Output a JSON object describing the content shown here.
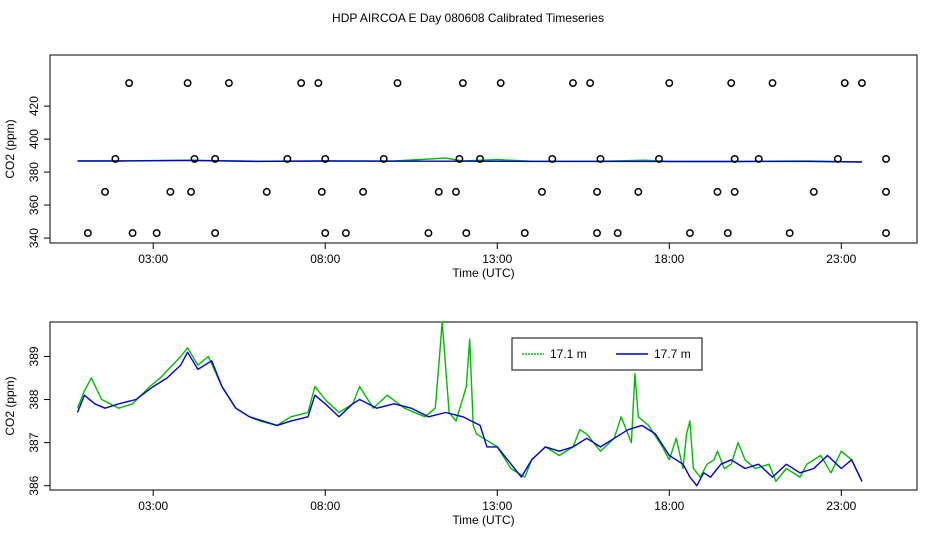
{
  "title": "HDP AIRCOA E  Day 080608  Calibrated Timeseries",
  "chart_data": [
    {
      "type": "scatter+line",
      "ylabel": "CO2 (ppm)",
      "xlabel": "Time (UTC)",
      "xlim": [
        0.0,
        25.2
      ],
      "ylim": [
        337,
        451
      ],
      "xticks": [
        3,
        8,
        13,
        18,
        23
      ],
      "xtick_labels": [
        "03:00",
        "08:00",
        "13:00",
        "18:00",
        "23:00"
      ],
      "yticks": [
        340,
        360,
        380,
        400,
        420
      ],
      "ytick_labels": [
        "340",
        "360",
        "380",
        "400",
        "420"
      ],
      "grid": false,
      "legend": "none",
      "calibration_series": {
        "name": "",
        "marker": "open-circle",
        "points": [
          [
            1.1,
            343
          ],
          [
            2.4,
            343
          ],
          [
            3.1,
            343
          ],
          [
            4.8,
            343
          ],
          [
            8.0,
            343
          ],
          [
            8.6,
            343
          ],
          [
            11.0,
            343
          ],
          [
            12.1,
            343
          ],
          [
            13.8,
            343
          ],
          [
            15.9,
            343
          ],
          [
            16.5,
            343
          ],
          [
            18.6,
            343
          ],
          [
            19.7,
            343
          ],
          [
            21.5,
            343
          ],
          [
            24.3,
            343
          ],
          [
            1.6,
            368
          ],
          [
            3.5,
            368
          ],
          [
            4.1,
            368
          ],
          [
            6.3,
            368
          ],
          [
            7.9,
            368
          ],
          [
            9.1,
            368
          ],
          [
            11.3,
            368
          ],
          [
            11.8,
            368
          ],
          [
            14.3,
            368
          ],
          [
            15.9,
            368
          ],
          [
            17.1,
            368
          ],
          [
            19.4,
            368
          ],
          [
            19.9,
            368
          ],
          [
            22.2,
            368
          ],
          [
            24.3,
            368
          ],
          [
            1.9,
            388
          ],
          [
            4.2,
            388
          ],
          [
            4.8,
            388
          ],
          [
            6.9,
            388
          ],
          [
            8.0,
            388
          ],
          [
            9.7,
            388
          ],
          [
            11.9,
            388
          ],
          [
            12.5,
            388
          ],
          [
            14.6,
            388
          ],
          [
            16.0,
            388
          ],
          [
            17.7,
            388
          ],
          [
            19.9,
            388
          ],
          [
            20.6,
            388
          ],
          [
            22.9,
            388
          ],
          [
            24.3,
            388
          ],
          [
            2.3,
            434
          ],
          [
            4.0,
            434
          ],
          [
            5.2,
            434
          ],
          [
            7.3,
            434
          ],
          [
            7.8,
            434
          ],
          [
            10.1,
            434
          ],
          [
            12.0,
            434
          ],
          [
            13.1,
            434
          ],
          [
            15.2,
            434
          ],
          [
            15.7,
            434
          ],
          [
            18.0,
            434
          ],
          [
            19.8,
            434
          ],
          [
            21.0,
            434
          ],
          [
            23.1,
            434
          ],
          [
            23.6,
            434
          ]
        ]
      },
      "series": [
        {
          "name": "17.1 m",
          "color": "#00bb00",
          "x": [
            0.8,
            2,
            4,
            6,
            8,
            10,
            11.5,
            12,
            13,
            14,
            16,
            17.3,
            18,
            20,
            22,
            23.6
          ],
          "y": [
            386.8,
            386.8,
            387.2,
            386.6,
            386.8,
            386.7,
            388.5,
            386.7,
            387.6,
            386.6,
            386.6,
            387.2,
            386.5,
            386.5,
            386.7,
            386.2
          ]
        },
        {
          "name": "17.7 m",
          "color": "#0000cc",
          "x": [
            0.8,
            2,
            4,
            6,
            8,
            10,
            12,
            14,
            16,
            18,
            20,
            22,
            23.6
          ],
          "y": [
            386.7,
            386.7,
            387.1,
            386.5,
            386.7,
            386.6,
            386.6,
            386.5,
            386.5,
            386.4,
            386.4,
            386.5,
            386.1
          ]
        }
      ]
    },
    {
      "type": "line",
      "ylabel": "CO2 (ppm)",
      "xlabel": "Time (UTC)",
      "xlim": [
        0.0,
        25.2
      ],
      "ylim": [
        385.9,
        389.8
      ],
      "xticks": [
        3,
        8,
        13,
        18,
        23
      ],
      "xtick_labels": [
        "03:00",
        "08:00",
        "13:00",
        "18:00",
        "23:00"
      ],
      "yticks": [
        386,
        387,
        388,
        389
      ],
      "ytick_labels": [
        "386",
        "387",
        "388",
        "389"
      ],
      "grid": false,
      "legend": "top-center",
      "series": [
        {
          "name": "17.1 m",
          "color": "#00bb00",
          "x": [
            0.8,
            1.0,
            1.2,
            1.5,
            2.0,
            2.4,
            2.9,
            3.2,
            3.8,
            4.0,
            4.3,
            4.6,
            5.0,
            5.4,
            5.8,
            6.1,
            6.6,
            7.0,
            7.5,
            7.7,
            8.0,
            8.4,
            8.8,
            9.0,
            9.4,
            9.8,
            10.3,
            10.9,
            11.2,
            11.3,
            11.4,
            11.6,
            11.8,
            12.1,
            12.2,
            12.3,
            12.4,
            12.6,
            13.0,
            13.4,
            13.8,
            14.0,
            14.4,
            14.8,
            15.2,
            15.4,
            15.6,
            16.0,
            16.4,
            16.6,
            16.9,
            17.0,
            17.1,
            17.4,
            17.8,
            18.0,
            18.2,
            18.4,
            18.5,
            18.6,
            18.7,
            18.9,
            19.1,
            19.3,
            19.4,
            19.6,
            19.8,
            20.0,
            20.2,
            20.5,
            20.9,
            21.1,
            21.4,
            21.8,
            22.0,
            22.4,
            22.7,
            23.0,
            23.3,
            23.6
          ],
          "y": [
            387.8,
            388.2,
            388.5,
            388.0,
            387.8,
            387.9,
            388.3,
            388.5,
            389.0,
            389.2,
            388.8,
            389.0,
            388.3,
            387.8,
            387.6,
            387.5,
            387.4,
            387.6,
            387.7,
            388.3,
            388.0,
            387.7,
            387.9,
            388.3,
            387.8,
            388.1,
            387.8,
            387.6,
            387.8,
            388.8,
            389.8,
            387.7,
            387.5,
            388.3,
            389.4,
            387.4,
            387.2,
            387.1,
            386.9,
            386.4,
            386.2,
            386.6,
            386.9,
            386.7,
            386.9,
            387.3,
            387.2,
            386.8,
            387.1,
            387.6,
            387.0,
            388.6,
            387.6,
            387.4,
            386.9,
            386.6,
            387.1,
            386.4,
            387.2,
            387.5,
            386.4,
            386.2,
            386.5,
            386.6,
            386.8,
            386.4,
            386.5,
            387.0,
            386.6,
            386.4,
            386.5,
            386.1,
            386.4,
            386.2,
            386.5,
            386.7,
            386.3,
            386.8,
            386.6,
            386.1
          ]
        },
        {
          "name": "17.7 m",
          "color": "#0000cc",
          "x": [
            0.8,
            1.0,
            1.3,
            1.6,
            2.0,
            2.5,
            3.0,
            3.4,
            3.8,
            4.0,
            4.3,
            4.7,
            5.0,
            5.4,
            5.8,
            6.2,
            6.6,
            7.0,
            7.5,
            7.7,
            8.0,
            8.4,
            8.8,
            9.0,
            9.5,
            10.0,
            10.5,
            11.0,
            11.5,
            12.0,
            12.5,
            12.7,
            13.0,
            13.3,
            13.7,
            14.0,
            14.4,
            14.8,
            15.2,
            15.6,
            16.0,
            16.4,
            16.8,
            17.2,
            17.6,
            18.0,
            18.4,
            18.6,
            18.8,
            19.0,
            19.2,
            19.5,
            19.8,
            20.2,
            20.6,
            21.0,
            21.4,
            21.8,
            22.2,
            22.6,
            23.0,
            23.3,
            23.6
          ],
          "y": [
            387.7,
            388.1,
            387.9,
            387.8,
            387.9,
            388.0,
            388.3,
            388.5,
            388.8,
            389.1,
            388.7,
            388.9,
            388.3,
            387.8,
            387.6,
            387.5,
            387.4,
            387.5,
            387.6,
            388.1,
            387.9,
            387.6,
            387.9,
            388.0,
            387.8,
            387.9,
            387.8,
            387.6,
            387.7,
            387.6,
            387.4,
            386.9,
            386.9,
            386.6,
            386.2,
            386.6,
            386.9,
            386.8,
            386.9,
            387.1,
            386.9,
            387.1,
            387.3,
            387.4,
            387.2,
            386.7,
            386.5,
            386.2,
            386.0,
            386.3,
            386.2,
            386.5,
            386.6,
            386.4,
            386.5,
            386.2,
            386.5,
            386.3,
            386.4,
            386.7,
            386.4,
            386.6,
            386.1
          ]
        }
      ]
    }
  ]
}
